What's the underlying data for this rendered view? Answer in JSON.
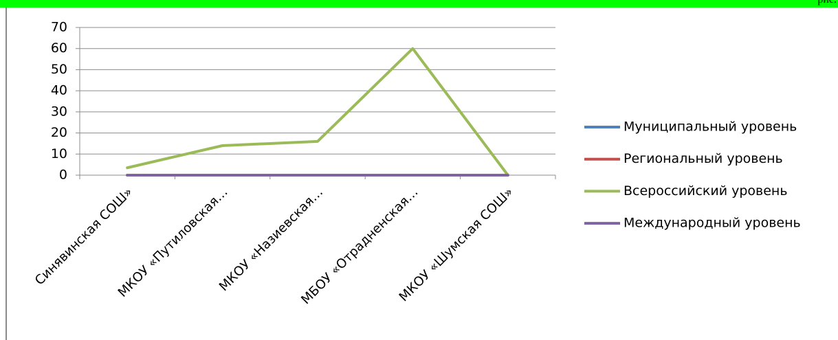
{
  "header": {
    "corner_text": "рис."
  },
  "chart_data": {
    "type": "line",
    "categories": [
      "Синявинская СОШ»",
      "МКОУ «Путиловская…",
      "МКОУ «Назиевская…",
      "МБОУ «Отрадненская…",
      "МКОУ «Шумская СОШ»"
    ],
    "series": [
      {
        "name": "Муниципальный уровень",
        "color": "#4f81bd",
        "values": [
          0,
          0,
          0,
          0,
          0
        ]
      },
      {
        "name": "Региональный уровень",
        "color": "#c0504d",
        "values": [
          0,
          0,
          0,
          0,
          0
        ]
      },
      {
        "name": "Всероссийский уровень",
        "color": "#9bbb59",
        "values": [
          3.5,
          14,
          16,
          60,
          0
        ]
      },
      {
        "name": "Международный уровень",
        "color": "#8064a2",
        "values": [
          0,
          0,
          0,
          0,
          0
        ]
      }
    ],
    "yticks": [
      0,
      10,
      20,
      30,
      40,
      50,
      60,
      70
    ],
    "ylim": [
      0,
      70
    ],
    "grid": true,
    "legend": "right"
  }
}
